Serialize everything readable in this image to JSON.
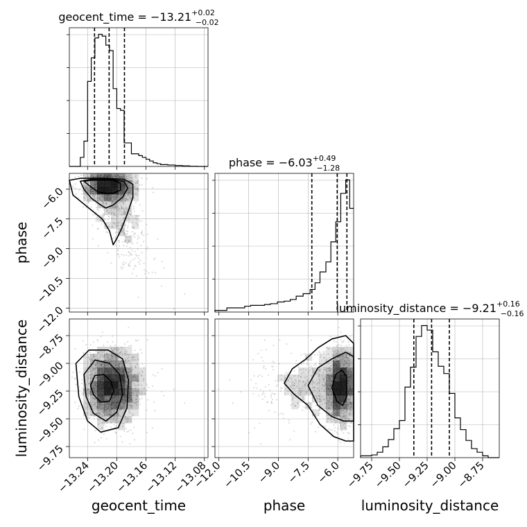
{
  "chart_data": {
    "type": "corner",
    "parameters": [
      "geocent_time",
      "phase",
      "luminosity_distance"
    ],
    "titles": [
      {
        "param": "geocent_time",
        "prefix": "geocent_time = ",
        "value": "−13.21",
        "plus": "+0.02",
        "minus": "−0.02"
      },
      {
        "param": "phase",
        "prefix": "phase = ",
        "value": "−6.03",
        "plus": "+0.49",
        "minus": "−1.28"
      },
      {
        "param": "luminosity_distance",
        "prefix": "luminosity_distance = ",
        "value": "−9.21",
        "plus": "+0.16",
        "minus": "−0.16"
      }
    ],
    "ranges": {
      "geocent_time": [
        -13.265,
        -13.075
      ],
      "phase": [
        -12.2,
        -5.2
      ],
      "luminosity_distance": [
        -9.85,
        -8.6
      ]
    },
    "axis_labels": {
      "xlabels": [
        "geocent_time",
        "phase",
        "luminosity_distance"
      ],
      "ylabels": [
        "phase",
        "luminosity_distance"
      ]
    },
    "ticks": {
      "geocent_time": {
        "values": [
          -13.24,
          -13.2,
          -13.16,
          -13.12,
          -13.08
        ],
        "labels": [
          "−13.24",
          "−13.20",
          "−13.16",
          "−13.12",
          "−13.08"
        ]
      },
      "phase": {
        "values": [
          -12.0,
          -10.5,
          -9.0,
          -7.5,
          -6.0
        ],
        "labels": [
          "−12.0",
          "−10.5",
          "−9.0",
          "−7.5",
          "−6.0"
        ]
      },
      "luminosity_distance": {
        "values": [
          -9.75,
          -9.5,
          -9.25,
          -9.0,
          -8.75
        ],
        "labels": [
          "−9.75",
          "−9.50",
          "−9.25",
          "−9.00",
          "−8.75"
        ]
      }
    },
    "histograms": {
      "geocent_time": {
        "bin_edges": [
          -13.265,
          -13.25,
          -13.245,
          -13.24,
          -13.235,
          -13.23,
          -13.225,
          -13.22,
          -13.215,
          -13.21,
          -13.205,
          -13.2,
          -13.195,
          -13.19,
          -13.185,
          -13.18,
          -13.175,
          -13.17,
          -13.165,
          -13.16,
          -13.155,
          -13.15,
          -13.145,
          -13.14,
          -13.13,
          -13.12,
          -13.11,
          -13.1,
          -13.09,
          -13.075
        ],
        "counts": [
          0,
          0.05,
          0.14,
          0.47,
          0.6,
          0.71,
          0.73,
          0.72,
          0.67,
          0.64,
          0.43,
          0.32,
          0.31,
          0.13,
          0.13,
          0.07,
          0.07,
          0.06,
          0.05,
          0.04,
          0.03,
          0.02,
          0.015,
          0.01,
          0.008,
          0.005,
          0.003,
          0.001,
          0.0
        ]
      },
      "phase": {
        "bin_edges": [
          -12.2,
          -11.6,
          -11.1,
          -10.7,
          -10.4,
          -10.05,
          -9.7,
          -9.4,
          -9.05,
          -8.7,
          -8.4,
          -8.1,
          -7.75,
          -7.4,
          -7.15,
          -6.9,
          -6.6,
          -6.35,
          -6.1,
          -5.85,
          -5.6,
          -5.4,
          -5.2
        ],
        "counts": [
          0.02,
          0.05,
          0.05,
          0.07,
          0.08,
          0.08,
          0.09,
          0.1,
          0.12,
          0.13,
          0.15,
          0.19,
          0.22,
          0.27,
          0.35,
          0.48,
          0.6,
          0.84,
          1.08,
          1.42,
          1.58,
          1.24
        ]
      },
      "luminosity_distance": {
        "bin_edges": [
          -9.85,
          -9.75,
          -9.7,
          -9.65,
          -9.6,
          -9.55,
          -9.5,
          -9.45,
          -9.4,
          -9.35,
          -9.3,
          -9.25,
          -9.2,
          -9.15,
          -9.1,
          -9.05,
          -9.0,
          -8.95,
          -8.9,
          -8.85,
          -8.8,
          -8.75,
          -8.7,
          -8.6
        ],
        "counts": [
          0.02,
          0.03,
          0.06,
          0.12,
          0.2,
          0.32,
          0.41,
          0.78,
          1.0,
          1.34,
          1.46,
          1.41,
          1.17,
          1.01,
          0.93,
          0.71,
          0.44,
          0.31,
          0.19,
          0.1,
          0.06,
          0.02,
          0.0
        ]
      }
    },
    "quantiles": {
      "geocent_time": [
        -13.2305,
        -13.2105,
        -13.1895
      ],
      "phase": [
        -7.31,
        -6.03,
        -5.54
      ],
      "luminosity_distance": [
        -9.37,
        -9.21,
        -9.05
      ]
    },
    "contours": {
      "phase_vs_geocent_time": [
        {
          "level": 0.39,
          "points": [
            [
              -13.245,
              -5.6
            ],
            [
              -13.235,
              -5.9
            ],
            [
              -13.225,
              -6.15
            ],
            [
              -13.215,
              -6.2
            ],
            [
              -13.205,
              -6.2
            ],
            [
              -13.195,
              -6.05
            ],
            [
              -13.195,
              -5.7
            ],
            [
              -13.205,
              -5.55
            ],
            [
              -13.22,
              -5.55
            ],
            [
              -13.235,
              -5.55
            ]
          ]
        },
        {
          "level": 0.86,
          "points": [
            [
              -13.25,
              -5.6
            ],
            [
              -13.245,
              -6.0
            ],
            [
              -13.235,
              -6.45
            ],
            [
              -13.222,
              -6.8
            ],
            [
              -13.215,
              -6.95
            ],
            [
              -13.205,
              -6.8
            ],
            [
              -13.192,
              -6.4
            ],
            [
              -13.185,
              -5.95
            ],
            [
              -13.19,
              -5.6
            ],
            [
              -13.21,
              -5.5
            ],
            [
              -13.235,
              -5.5
            ]
          ]
        },
        {
          "level": 0.95,
          "points": [
            [
              -13.265,
              -5.55
            ],
            [
              -13.26,
              -6.3
            ],
            [
              -13.24,
              -6.9
            ],
            [
              -13.22,
              -7.5
            ],
            [
              -13.21,
              -8.1
            ],
            [
              -13.205,
              -8.8
            ],
            [
              -13.2,
              -8.5
            ],
            [
              -13.193,
              -7.95
            ],
            [
              -13.185,
              -7.2
            ],
            [
              -13.178,
              -6.4
            ],
            [
              -13.178,
              -5.75
            ],
            [
              -13.19,
              -5.5
            ],
            [
              -13.22,
              -5.45
            ],
            [
              -13.25,
              -5.45
            ]
          ]
        }
      ],
      "luminosity_distance_vs_geocent_time": [
        {
          "level": 0.39,
          "points": [
            [
              -13.236,
              -9.2
            ],
            [
              -13.232,
              -9.28
            ],
            [
              -13.222,
              -9.35
            ],
            [
              -13.21,
              -9.34
            ],
            [
              -13.204,
              -9.25
            ],
            [
              -13.208,
              -9.16
            ],
            [
              -13.218,
              -9.1
            ],
            [
              -13.23,
              -9.11
            ]
          ]
        },
        {
          "level": 0.86,
          "points": [
            [
              -13.245,
              -9.1
            ],
            [
              -13.242,
              -9.3
            ],
            [
              -13.232,
              -9.45
            ],
            [
              -13.215,
              -9.52
            ],
            [
              -13.2,
              -9.44
            ],
            [
              -13.192,
              -9.28
            ],
            [
              -13.196,
              -9.1
            ],
            [
              -13.21,
              -9.0
            ],
            [
              -13.23,
              -8.97
            ]
          ]
        },
        {
          "level": 0.95,
          "points": [
            [
              -13.256,
              -9.0
            ],
            [
              -13.252,
              -9.3
            ],
            [
              -13.24,
              -9.52
            ],
            [
              -13.222,
              -9.62
            ],
            [
              -13.198,
              -9.58
            ],
            [
              -13.186,
              -9.4
            ],
            [
              -13.184,
              -9.15
            ],
            [
              -13.192,
              -8.96
            ],
            [
              -13.212,
              -8.88
            ],
            [
              -13.238,
              -8.88
            ]
          ]
        }
      ],
      "luminosity_distance_vs_phase": [
        {
          "level": 0.39,
          "points": [
            [
              -6.3,
              -9.22
            ],
            [
              -6.05,
              -9.34
            ],
            [
              -5.75,
              -9.38
            ],
            [
              -5.55,
              -9.3
            ],
            [
              -5.55,
              -9.12
            ],
            [
              -5.8,
              -9.06
            ],
            [
              -6.1,
              -9.1
            ]
          ]
        },
        {
          "level": 0.86,
          "points": [
            [
              -7.5,
              -9.2
            ],
            [
              -7.0,
              -9.38
            ],
            [
              -6.3,
              -9.48
            ],
            [
              -5.7,
              -9.52
            ],
            [
              -5.2,
              -9.52
            ],
            [
              -5.2,
              -8.94
            ],
            [
              -5.6,
              -8.9
            ],
            [
              -6.3,
              -8.96
            ],
            [
              -7.0,
              -9.04
            ]
          ]
        },
        {
          "level": 0.95,
          "points": [
            [
              -8.7,
              -9.18
            ],
            [
              -8.2,
              -9.28
            ],
            [
              -7.5,
              -9.38
            ],
            [
              -6.9,
              -9.55
            ],
            [
              -6.2,
              -9.66
            ],
            [
              -5.6,
              -9.7
            ],
            [
              -5.2,
              -9.7
            ],
            [
              -5.2,
              -8.82
            ],
            [
              -5.6,
              -8.75
            ],
            [
              -6.3,
              -8.78
            ],
            [
              -7.0,
              -8.86
            ],
            [
              -7.6,
              -8.96
            ],
            [
              -8.3,
              -9.05
            ]
          ]
        }
      ]
    },
    "grid": true,
    "colors": {
      "line": "#000000",
      "grid": "#b0b0b0",
      "points": "#999999",
      "density": "#000000"
    }
  }
}
